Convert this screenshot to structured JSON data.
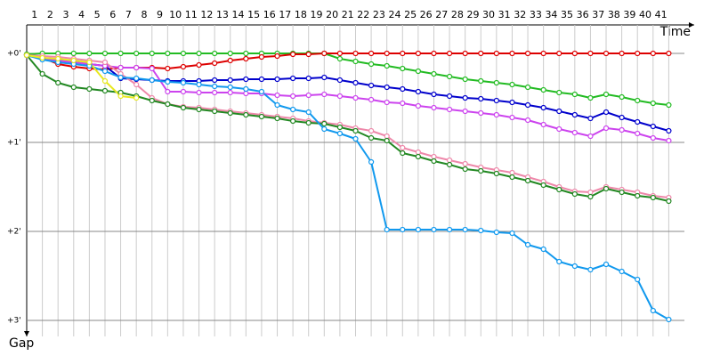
{
  "chart_data": {
    "type": "line",
    "x_label": "Time",
    "y_label": "Gap",
    "x": [
      0,
      1,
      2,
      3,
      4,
      5,
      6,
      7,
      8,
      9,
      10,
      11,
      12,
      13,
      14,
      15,
      16,
      17,
      18,
      19,
      20,
      21,
      22,
      23,
      24,
      25,
      26,
      27,
      28,
      29,
      30,
      31,
      32,
      33,
      34,
      35,
      36,
      37,
      38,
      39,
      40,
      41
    ],
    "xlim": [
      0,
      42
    ],
    "xticks": [
      1,
      2,
      3,
      4,
      5,
      6,
      7,
      8,
      9,
      10,
      11,
      12,
      13,
      14,
      15,
      16,
      17,
      18,
      19,
      20,
      21,
      22,
      23,
      24,
      25,
      26,
      27,
      28,
      29,
      30,
      31,
      32,
      33,
      34,
      35,
      36,
      37,
      38,
      39,
      40,
      41
    ],
    "ylim": [
      -0.32,
      3.18
    ],
    "y_inverted": true,
    "yticks": [
      {
        "value": 0,
        "label": "+0'"
      },
      {
        "value": 1,
        "label": "+1'"
      },
      {
        "value": 2,
        "label": "+2'"
      },
      {
        "value": 3,
        "label": "+3'"
      }
    ],
    "grid": true,
    "series": [
      {
        "color": "#22bb22",
        "values": [
          0.01,
          0,
          0,
          0,
          0,
          0,
          0,
          0,
          0,
          0,
          0,
          0,
          0,
          0,
          0,
          0,
          0,
          0,
          0,
          0,
          0.06,
          0.09,
          0.12,
          0.14,
          0.17,
          0.2,
          0.23,
          0.26,
          0.29,
          0.31,
          0.33,
          0.35,
          0.38,
          0.41,
          0.44,
          0.46,
          0.5,
          0.46,
          0.49,
          0.53,
          0.56,
          0.58
        ]
      },
      {
        "color": "#dd0000",
        "values": [
          0.02,
          0.05,
          0.12,
          0.15,
          0.17,
          0.18,
          0.16,
          0.16,
          0.16,
          0.17,
          0.15,
          0.13,
          0.11,
          0.08,
          0.06,
          0.04,
          0.03,
          0.01,
          0.01,
          0,
          0,
          0,
          0,
          0,
          0,
          0,
          0,
          0,
          0,
          0,
          0,
          0,
          0,
          0,
          0,
          0,
          0,
          0,
          0,
          0,
          0,
          0
        ]
      },
      {
        "color": "#0000cc",
        "values": [
          0.02,
          0.06,
          0.08,
          0.1,
          0.12,
          0.14,
          0.28,
          0.29,
          0.3,
          0.31,
          0.31,
          0.31,
          0.3,
          0.3,
          0.29,
          0.29,
          0.29,
          0.28,
          0.28,
          0.27,
          0.3,
          0.33,
          0.36,
          0.38,
          0.4,
          0.43,
          0.46,
          0.48,
          0.5,
          0.51,
          0.53,
          0.55,
          0.58,
          0.61,
          0.65,
          0.69,
          0.73,
          0.66,
          0.72,
          0.77,
          0.82,
          0.87
        ]
      },
      {
        "color": "#cc44ee",
        "values": [
          0.02,
          0.06,
          0.08,
          0.1,
          0.12,
          0.14,
          0.16,
          0.16,
          0.17,
          0.43,
          0.43,
          0.44,
          0.44,
          0.44,
          0.45,
          0.45,
          0.47,
          0.48,
          0.47,
          0.46,
          0.48,
          0.5,
          0.52,
          0.55,
          0.56,
          0.59,
          0.61,
          0.63,
          0.65,
          0.67,
          0.69,
          0.72,
          0.75,
          0.8,
          0.85,
          0.89,
          0.93,
          0.84,
          0.86,
          0.9,
          0.95,
          0.98
        ]
      },
      {
        "color": "#ee88aa",
        "values": [
          0.02,
          0.03,
          0.04,
          0.06,
          0.08,
          0.1,
          0.23,
          0.35,
          0.5,
          0.57,
          0.6,
          0.61,
          0.63,
          0.65,
          0.67,
          0.69,
          0.71,
          0.73,
          0.76,
          0.78,
          0.8,
          0.84,
          0.87,
          0.93,
          1.06,
          1.11,
          1.16,
          1.2,
          1.24,
          1.28,
          1.31,
          1.34,
          1.39,
          1.44,
          1.5,
          1.55,
          1.56,
          1.5,
          1.53,
          1.56,
          1.6,
          1.62
        ]
      },
      {
        "color": "#228822",
        "values": [
          0.02,
          0.23,
          0.33,
          0.38,
          0.4,
          0.42,
          0.44,
          0.48,
          0.53,
          0.57,
          0.61,
          0.63,
          0.65,
          0.67,
          0.69,
          0.71,
          0.73,
          0.76,
          0.78,
          0.79,
          0.83,
          0.87,
          0.95,
          0.98,
          1.12,
          1.16,
          1.21,
          1.25,
          1.3,
          1.32,
          1.35,
          1.39,
          1.43,
          1.48,
          1.53,
          1.58,
          1.61,
          1.52,
          1.56,
          1.6,
          1.62,
          1.66
        ]
      },
      {
        "color": "#1199ee",
        "values": [
          0.02,
          0.07,
          0.1,
          0.12,
          0.14,
          0.2,
          0.27,
          0.28,
          0.3,
          0.32,
          0.33,
          0.35,
          0.37,
          0.38,
          0.4,
          0.43,
          0.58,
          0.63,
          0.66,
          0.85,
          0.9,
          0.96,
          1.22,
          1.98,
          1.98,
          1.98,
          1.98,
          1.98,
          1.98,
          1.99,
          2.01,
          2.02,
          2.15,
          2.2,
          2.34,
          2.39,
          2.43,
          2.37,
          2.45,
          2.54,
          2.89,
          2.99
        ]
      },
      {
        "color": "#e8e820",
        "values": [
          0.02,
          0.05,
          0.06,
          0.08,
          0.1,
          0.31,
          0.48,
          0.5,
          null,
          null,
          null,
          null,
          null,
          null,
          null,
          null,
          null,
          null,
          null,
          null,
          null,
          null,
          null,
          null,
          null,
          null,
          null,
          null,
          null,
          null,
          null,
          null,
          null,
          null,
          null,
          null,
          null,
          null,
          null,
          null,
          null,
          null
        ]
      }
    ]
  }
}
